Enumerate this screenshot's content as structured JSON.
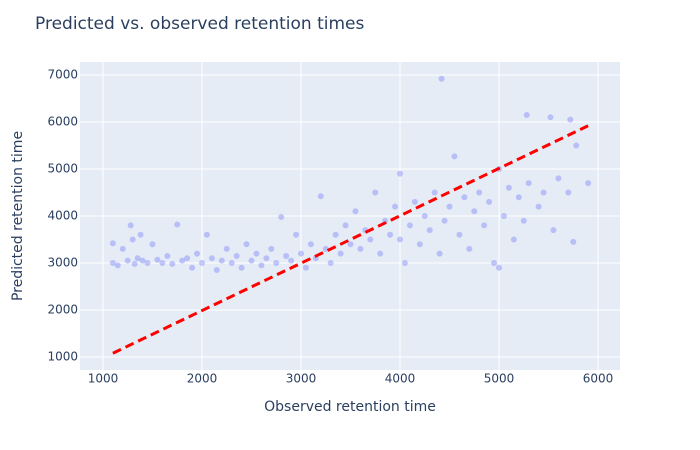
{
  "chart_data": {
    "type": "scatter",
    "title": "Predicted vs. observed retention times",
    "xlabel": "Observed retention time",
    "ylabel": "Predicted retention time",
    "xlim": [
      768,
      6222
    ],
    "ylim": [
      723,
      7277
    ],
    "xticks": [
      1000,
      2000,
      3000,
      4000,
      5000,
      6000
    ],
    "yticks": [
      1000,
      2000,
      3000,
      4000,
      5000,
      6000,
      7000
    ],
    "grid": true,
    "series": [
      {
        "mode": "markers",
        "color": "#636efa",
        "opacity": 0.35,
        "x": [
          1100,
          1100,
          1150,
          1200,
          1250,
          1280,
          1300,
          1320,
          1350,
          1380,
          1400,
          1450,
          1500,
          1550,
          1600,
          1650,
          1700,
          1750,
          1800,
          1850,
          1900,
          1950,
          2000,
          2050,
          2100,
          2150,
          2200,
          2250,
          2300,
          2350,
          2400,
          2450,
          2500,
          2550,
          2600,
          2650,
          2700,
          2750,
          2800,
          2850,
          2900,
          2950,
          3000,
          3050,
          3100,
          3150,
          3200,
          3250,
          3300,
          3350,
          3400,
          3450,
          3500,
          3550,
          3600,
          3650,
          3700,
          3750,
          3800,
          3850,
          3900,
          3950,
          4000,
          4000,
          4050,
          4100,
          4150,
          4200,
          4250,
          4300,
          4350,
          4400,
          4420,
          4450,
          4500,
          4550,
          4600,
          4650,
          4700,
          4750,
          4800,
          4850,
          4900,
          4950,
          5000,
          5000,
          5050,
          5100,
          5150,
          5200,
          5250,
          5280,
          5300,
          5400,
          5450,
          5520,
          5550,
          5600,
          5700,
          5720,
          5750,
          5780,
          5900
        ],
        "values": [
          3000,
          3420,
          2950,
          3300,
          3050,
          3800,
          3500,
          2980,
          3100,
          3600,
          3050,
          3000,
          3400,
          3070,
          3000,
          3150,
          2980,
          3820,
          3050,
          3100,
          2900,
          3200,
          3000,
          3600,
          3100,
          2850,
          3050,
          3300,
          3000,
          3150,
          2900,
          3400,
          3050,
          3200,
          2950,
          3100,
          3300,
          3000,
          3980,
          3150,
          3050,
          3600,
          3200,
          2900,
          3400,
          3100,
          4420,
          3300,
          3000,
          3600,
          3200,
          3800,
          3400,
          4100,
          3300,
          3700,
          3500,
          4500,
          3200,
          3900,
          3600,
          4200,
          4900,
          3500,
          3000,
          3800,
          4300,
          3400,
          4000,
          3700,
          4500,
          3200,
          6920,
          3900,
          4200,
          5270,
          3600,
          4400,
          3300,
          4100,
          4500,
          3800,
          4300,
          3000,
          5000,
          2900,
          4000,
          4600,
          3500,
          4400,
          3900,
          6150,
          4700,
          4200,
          4500,
          6100,
          3700,
          4800,
          4500,
          6050,
          3450,
          5500,
          4700
        ]
      },
      {
        "mode": "line",
        "color": "#ff0000",
        "dash": true,
        "x": [
          1100,
          5900
        ],
        "values": [
          1080,
          5920
        ]
      }
    ]
  }
}
